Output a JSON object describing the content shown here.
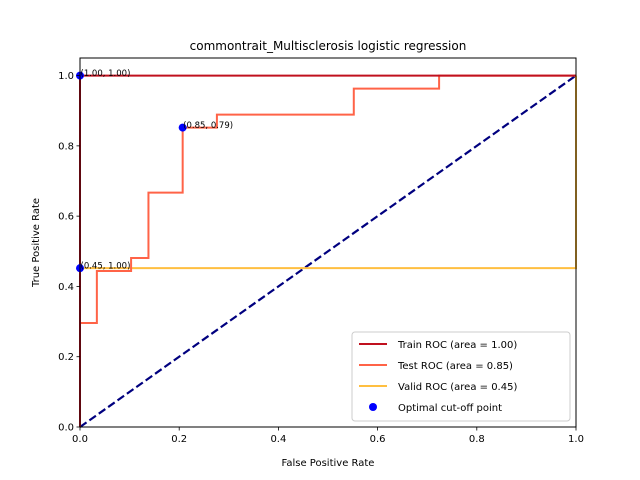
{
  "chart_data": {
    "type": "line",
    "title": "commontrait_Multisclerosis logistic regression",
    "xlabel": "False Positive Rate",
    "ylabel": "True Positive Rate",
    "xlim": [
      0,
      1
    ],
    "ylim": [
      0,
      1.05
    ],
    "xticks": [
      "0.0",
      "0.2",
      "0.4",
      "0.6",
      "0.8",
      "1.0"
    ],
    "yticks": [
      "0.0",
      "0.2",
      "0.4",
      "0.6",
      "0.8",
      "1.0"
    ],
    "legend_position": "bottom-right",
    "series": [
      {
        "name": "Train ROC (area = 1.00)",
        "color": "#c0101e",
        "x": [
          0,
          0,
          0.72,
          0.72,
          1
        ],
        "y": [
          0,
          1,
          1,
          1,
          1
        ]
      },
      {
        "name": "Test ROC (area = 0.85)",
        "color": "#ff6347",
        "x": [
          0,
          0,
          0.034,
          0.034,
          0.103,
          0.103,
          0.138,
          0.138,
          0.207,
          0.207,
          0.276,
          0.276,
          0.552,
          0.552,
          0.724,
          0.724,
          1
        ],
        "y": [
          0,
          0.296,
          0.296,
          0.444,
          0.444,
          0.481,
          0.481,
          0.667,
          0.667,
          0.852,
          0.852,
          0.889,
          0.889,
          0.963,
          0.963,
          1,
          1
        ]
      },
      {
        "name": "Valid ROC (area = 0.45)",
        "color": "#ffbf40",
        "x": [
          0,
          0,
          1,
          1
        ],
        "y": [
          0,
          0.452,
          0.452,
          1
        ]
      }
    ],
    "diagonal": {
      "color": "#00007f",
      "x": [
        0,
        1
      ],
      "y": [
        0,
        1
      ]
    },
    "optimal_points": {
      "name": "Optimal cut-off point",
      "color": "#0000ff",
      "points": [
        {
          "x": 0,
          "y": 1,
          "label": "(1.00, 1.00)"
        },
        {
          "x": 0.207,
          "y": 0.852,
          "label": "(0.85, 0.79)"
        },
        {
          "x": 0,
          "y": 0.452,
          "label": "(0.45, 1.00)"
        }
      ]
    }
  }
}
